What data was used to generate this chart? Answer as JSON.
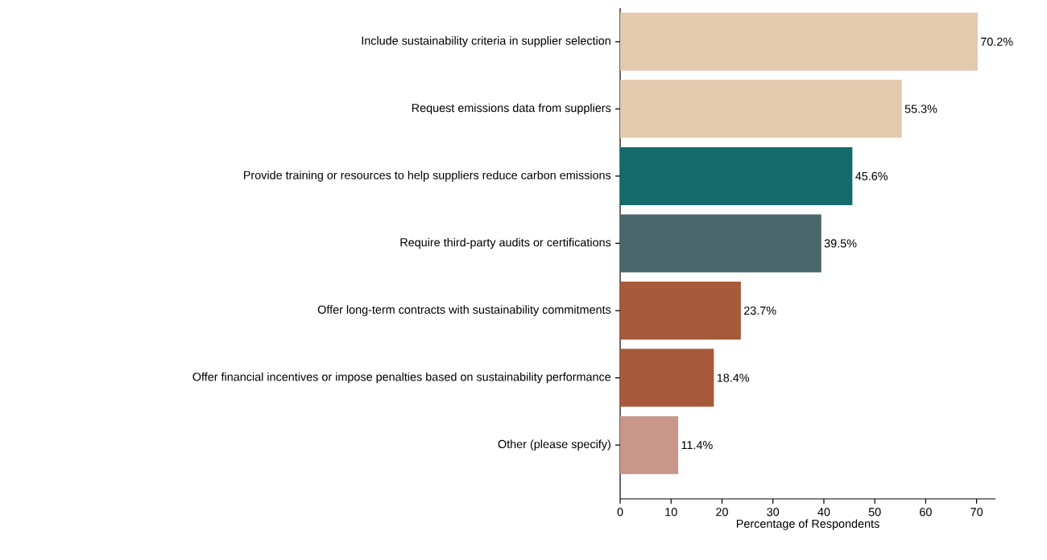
{
  "chart_data": {
    "type": "bar",
    "orientation": "horizontal",
    "xlabel": "Percentage of Respondents",
    "categories": [
      "Include sustainability criteria in supplier selection",
      "Request emissions data from suppliers",
      "Provide training or resources to help suppliers reduce carbon emissions",
      "Require third-party audits or certifications",
      "Offer long-term contracts with sustainability commitments",
      "Offer financial incentives or impose penalties based on sustainability performance",
      "Other (please specify)"
    ],
    "values": [
      70.2,
      55.3,
      45.6,
      39.5,
      23.7,
      18.4,
      11.4
    ],
    "colors": [
      "#e3c9ad",
      "#e3c9ad",
      "#136b6b",
      "#4a686b",
      "#a65a3b",
      "#a65a3b",
      "#c8978a"
    ],
    "value_labels": [
      "70.2%",
      "55.3%",
      "45.6%",
      "39.5%",
      "23.7%",
      "18.4%",
      "11.4%"
    ],
    "xlim": [
      0,
      73.7
    ],
    "xticks": [
      0,
      10,
      20,
      30,
      40,
      50,
      60,
      70
    ],
    "grid": false
  }
}
